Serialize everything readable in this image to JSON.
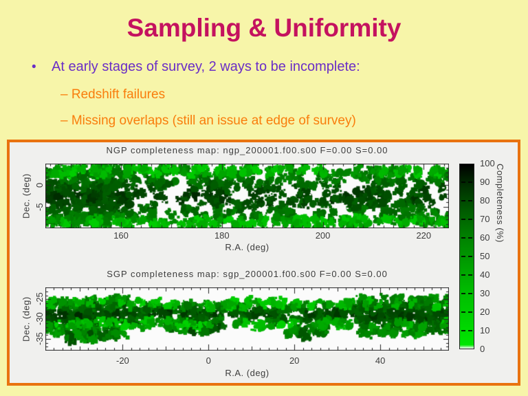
{
  "slide": {
    "title": "Sampling & Uniformity",
    "bullet_marker": "•",
    "bullet": "At early stages of survey, 2 ways to be incomplete:",
    "sub_bullets": [
      "– Redshift failures",
      "– Missing overlaps (still an issue at edge of survey)"
    ],
    "colors": {
      "background": "#F7F5A9",
      "title": "#C4125F",
      "bullet_text": "#6A2EC6",
      "sub_bullet_text": "#F97D0C",
      "figure_border": "#E9730F",
      "figure_background": "#F0F0EE",
      "plot_background": "#FBFBFB",
      "marker_bright": "#00D800",
      "marker_dark": "#003000"
    }
  },
  "chart_data": [
    {
      "type": "scatter",
      "panel": "NGP",
      "title": "NGP completeness map: ngp_200001.f00.s00 F=0.00 S=0.00",
      "xlabel": "R.A. (deg)",
      "ylabel": "Dec. (deg)",
      "xlim": [
        145,
        225
      ],
      "ylim": [
        -10,
        5
      ],
      "xticks": [
        160,
        180,
        200,
        220
      ],
      "yticks": [
        0,
        -5
      ],
      "legend": "color encodes completeness percent (shared colorbar)",
      "clusters": [
        {
          "x0": 0.0,
          "x1": 1.0,
          "yc": 0.5,
          "ys": 0.42,
          "count": 470,
          "kind": "core",
          "dist": "uniform"
        },
        {
          "x0": 0.0,
          "x1": 0.22,
          "yc": 0.5,
          "ys": 0.46,
          "count": 130,
          "kind": "core",
          "dist": "uniform"
        },
        {
          "x0": 0.0,
          "x1": 1.0,
          "yc": 0.91,
          "ys": 0.06,
          "count": 90,
          "kind": "fringe",
          "dist": "uniform"
        },
        {
          "x0": 0.0,
          "x1": 1.0,
          "yc": 0.11,
          "ys": 0.06,
          "count": 80,
          "kind": "fringe",
          "dist": "uniform"
        }
      ]
    },
    {
      "type": "scatter",
      "panel": "SGP",
      "title": "SGP completeness map: sgp_200001.f00.s00 F=0.00 S=0.00",
      "xlabel": "R.A. (deg)",
      "ylabel": "Dec. (deg)",
      "xlim": [
        -38,
        56
      ],
      "ylim": [
        -38,
        -22
      ],
      "xticks": [
        -20,
        0,
        20,
        40
      ],
      "yticks": [
        -25,
        -30,
        -35
      ],
      "legend": "color encodes completeness percent (shared colorbar)",
      "clusters": [
        {
          "x0": 0.0,
          "x1": 1.0,
          "yc": 0.42,
          "ys": 0.15,
          "count": 330,
          "kind": "core",
          "dist": "uniform"
        },
        {
          "x0": 0.0,
          "x1": 0.22,
          "yc": 0.45,
          "ys": 0.28,
          "count": 110,
          "kind": "core",
          "dist": "uniform"
        },
        {
          "x0": 0.05,
          "x1": 0.18,
          "yc": 0.75,
          "ys": 0.1,
          "count": 40,
          "kind": "mixed",
          "dist": "gauss"
        },
        {
          "x0": 0.3,
          "x1": 0.44,
          "yc": 0.64,
          "ys": 0.1,
          "count": 35,
          "kind": "mixed",
          "dist": "gauss"
        },
        {
          "x0": 0.6,
          "x1": 0.7,
          "yc": 0.7,
          "ys": 0.1,
          "count": 20,
          "kind": "mixed",
          "dist": "gauss"
        },
        {
          "x0": 0.78,
          "x1": 1.0,
          "yc": 0.45,
          "ys": 0.3,
          "count": 150,
          "kind": "core",
          "dist": "uniform"
        },
        {
          "x0": 0.0,
          "x1": 1.0,
          "yc": 0.26,
          "ys": 0.05,
          "count": 60,
          "kind": "fringe",
          "dist": "uniform"
        },
        {
          "x0": 0.0,
          "x1": 1.0,
          "yc": 0.58,
          "ys": 0.05,
          "count": 60,
          "kind": "fringe",
          "dist": "uniform"
        }
      ]
    },
    {
      "type": "colorbar",
      "label": "Completeness (%)",
      "ticks": [
        0,
        10,
        20,
        30,
        40,
        50,
        60,
        70,
        80,
        90,
        100
      ],
      "orientation": "vertical",
      "position": "right",
      "gradient": {
        "0": "#FFFFFF",
        "2": "#00E600",
        "15": "#00D200",
        "30": "#00BE00",
        "45": "#00A000",
        "60": "#008200",
        "75": "#005A00",
        "88": "#003000",
        "100": "#000000"
      }
    }
  ]
}
